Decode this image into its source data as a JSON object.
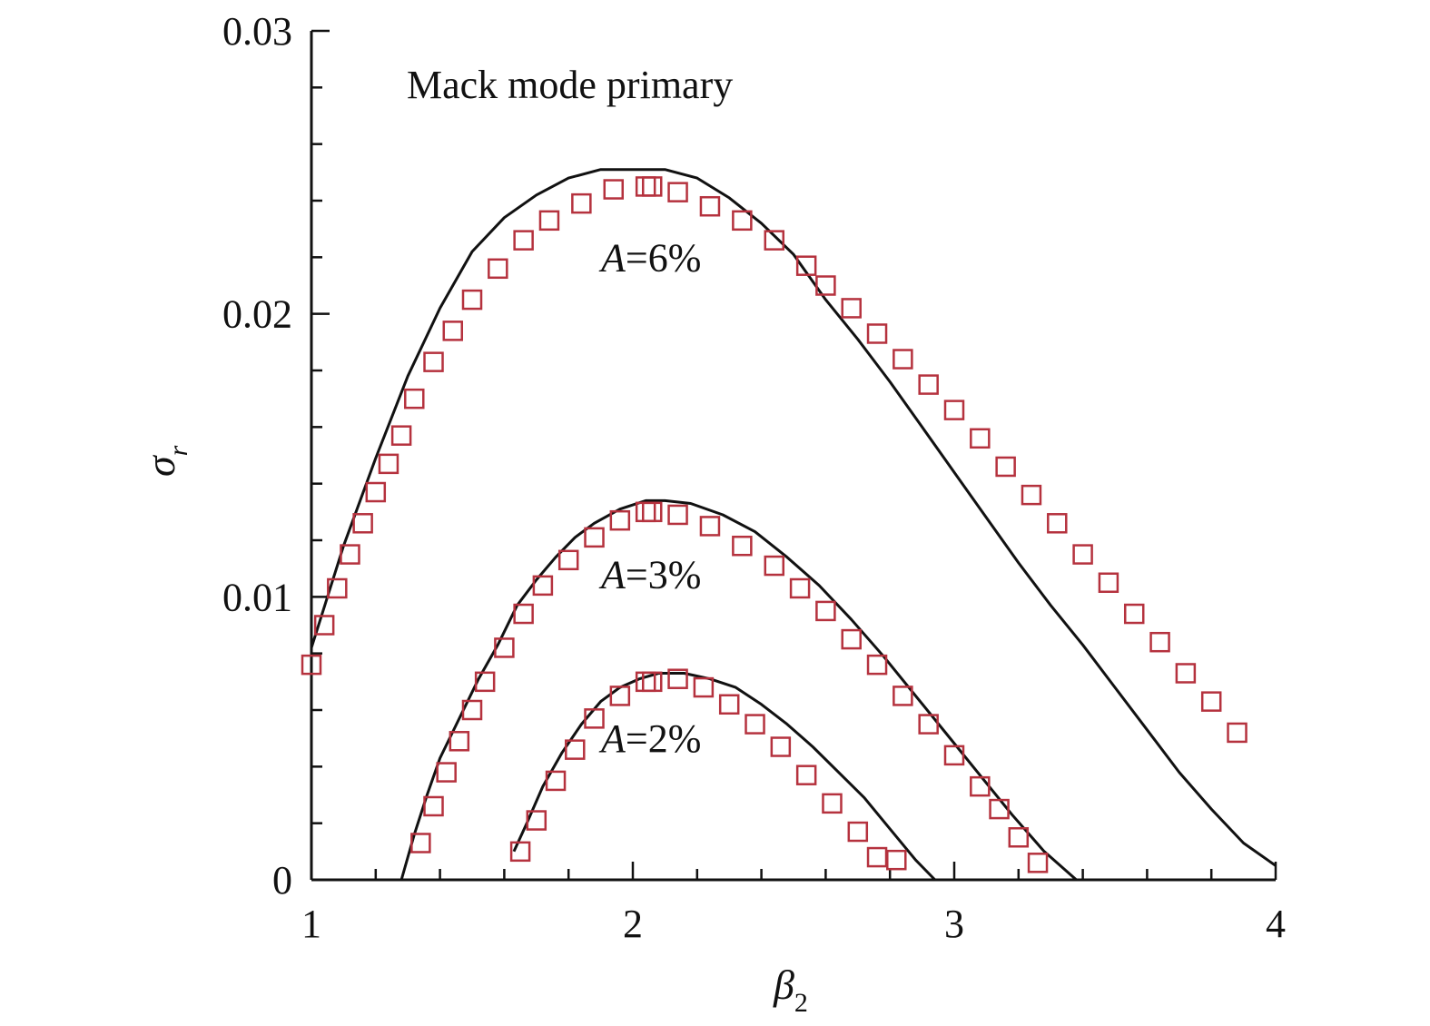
{
  "chart_data": {
    "type": "line",
    "title": "",
    "annotation": "Mack mode primary",
    "xlabel": "β",
    "xlabel_sub": "2",
    "ylabel": "σ",
    "ylabel_sub": "r",
    "xlim": [
      1,
      4
    ],
    "ylim": [
      0,
      0.03
    ],
    "x_ticks": [
      "1",
      "2",
      "3",
      "4"
    ],
    "y_ticks": [
      "0",
      "0.01",
      "0.02",
      "0.03"
    ],
    "grid": false,
    "marker_color": "#b5323e",
    "line_color": "#111111",
    "series": [
      {
        "label": "A=6%",
        "label_pos": [
          2.2,
          0.022
        ],
        "line": [
          [
            1.0,
            0.0082
          ],
          [
            1.1,
            0.0118
          ],
          [
            1.2,
            0.0149
          ],
          [
            1.3,
            0.0178
          ],
          [
            1.4,
            0.0202
          ],
          [
            1.5,
            0.0222
          ],
          [
            1.6,
            0.0234
          ],
          [
            1.7,
            0.0242
          ],
          [
            1.8,
            0.0248
          ],
          [
            1.9,
            0.0251
          ],
          [
            2.0,
            0.0251
          ],
          [
            2.1,
            0.0251
          ],
          [
            2.2,
            0.0248
          ],
          [
            2.3,
            0.0241
          ],
          [
            2.4,
            0.0232
          ],
          [
            2.5,
            0.0221
          ],
          [
            2.6,
            0.0205
          ],
          [
            2.7,
            0.0191
          ],
          [
            2.8,
            0.0176
          ],
          [
            2.9,
            0.016
          ],
          [
            3.0,
            0.0144
          ],
          [
            3.1,
            0.0128
          ],
          [
            3.2,
            0.0112
          ],
          [
            3.3,
            0.0097
          ],
          [
            3.4,
            0.0083
          ],
          [
            3.5,
            0.0068
          ],
          [
            3.6,
            0.0053
          ],
          [
            3.7,
            0.0038
          ],
          [
            3.8,
            0.0025
          ],
          [
            3.9,
            0.0013
          ],
          [
            4.0,
            0.0005
          ]
        ],
        "markers": [
          [
            1.0,
            0.0076
          ],
          [
            1.04,
            0.009
          ],
          [
            1.08,
            0.0103
          ],
          [
            1.12,
            0.0115
          ],
          [
            1.16,
            0.0126
          ],
          [
            1.2,
            0.0137
          ],
          [
            1.24,
            0.0147
          ],
          [
            1.28,
            0.0157
          ],
          [
            1.32,
            0.017
          ],
          [
            1.38,
            0.0183
          ],
          [
            1.44,
            0.0194
          ],
          [
            1.5,
            0.0205
          ],
          [
            1.58,
            0.0216
          ],
          [
            1.66,
            0.0226
          ],
          [
            1.74,
            0.0233
          ],
          [
            1.84,
            0.0239
          ],
          [
            1.94,
            0.0244
          ],
          [
            2.04,
            0.0245
          ],
          [
            2.06,
            0.0245
          ],
          [
            2.14,
            0.0243
          ],
          [
            2.24,
            0.0238
          ],
          [
            2.34,
            0.0233
          ],
          [
            2.44,
            0.0226
          ],
          [
            2.54,
            0.0217
          ],
          [
            2.6,
            0.021
          ],
          [
            2.68,
            0.0202
          ],
          [
            2.76,
            0.0193
          ],
          [
            2.84,
            0.0184
          ],
          [
            2.92,
            0.0175
          ],
          [
            3.0,
            0.0166
          ],
          [
            3.08,
            0.0156
          ],
          [
            3.16,
            0.0146
          ],
          [
            3.24,
            0.0136
          ],
          [
            3.32,
            0.0126
          ],
          [
            3.4,
            0.0115
          ],
          [
            3.48,
            0.0105
          ],
          [
            3.56,
            0.0094
          ],
          [
            3.64,
            0.0084
          ],
          [
            3.72,
            0.0073
          ],
          [
            3.8,
            0.0063
          ],
          [
            3.88,
            0.0052
          ]
        ]
      },
      {
        "label": "A=3%",
        "label_pos": [
          2.2,
          0.0108
        ],
        "line": [
          [
            1.28,
            0.0
          ],
          [
            1.32,
            0.0016
          ],
          [
            1.36,
            0.003
          ],
          [
            1.4,
            0.0043
          ],
          [
            1.46,
            0.0057
          ],
          [
            1.52,
            0.0071
          ],
          [
            1.58,
            0.0083
          ],
          [
            1.64,
            0.0097
          ],
          [
            1.7,
            0.0106
          ],
          [
            1.76,
            0.0114
          ],
          [
            1.82,
            0.0121
          ],
          [
            1.88,
            0.0126
          ],
          [
            1.96,
            0.0131
          ],
          [
            2.04,
            0.0134
          ],
          [
            2.1,
            0.0134
          ],
          [
            2.18,
            0.0133
          ],
          [
            2.28,
            0.0129
          ],
          [
            2.38,
            0.0123
          ],
          [
            2.48,
            0.0114
          ],
          [
            2.58,
            0.0104
          ],
          [
            2.68,
            0.0092
          ],
          [
            2.78,
            0.0079
          ],
          [
            2.88,
            0.0065
          ],
          [
            2.98,
            0.0051
          ],
          [
            3.08,
            0.0037
          ],
          [
            3.18,
            0.0023
          ],
          [
            3.28,
            0.001
          ],
          [
            3.38,
            0.0
          ]
        ],
        "markers": [
          [
            1.34,
            0.0013
          ],
          [
            1.38,
            0.0026
          ],
          [
            1.42,
            0.0038
          ],
          [
            1.46,
            0.0049
          ],
          [
            1.5,
            0.006
          ],
          [
            1.54,
            0.007
          ],
          [
            1.6,
            0.0082
          ],
          [
            1.66,
            0.0094
          ],
          [
            1.72,
            0.0104
          ],
          [
            1.8,
            0.0113
          ],
          [
            1.88,
            0.0121
          ],
          [
            1.96,
            0.0127
          ],
          [
            2.04,
            0.013
          ],
          [
            2.06,
            0.013
          ],
          [
            2.14,
            0.0129
          ],
          [
            2.24,
            0.0125
          ],
          [
            2.34,
            0.0118
          ],
          [
            2.44,
            0.0111
          ],
          [
            2.52,
            0.0103
          ],
          [
            2.6,
            0.0095
          ],
          [
            2.68,
            0.0085
          ],
          [
            2.76,
            0.0076
          ],
          [
            2.84,
            0.0065
          ],
          [
            2.92,
            0.0055
          ],
          [
            3.0,
            0.0044
          ],
          [
            3.08,
            0.0033
          ],
          [
            3.14,
            0.0025
          ],
          [
            3.2,
            0.0015
          ],
          [
            3.26,
            0.0006
          ]
        ]
      },
      {
        "label": "A=2%",
        "label_pos": [
          2.2,
          0.005
        ],
        "line": [
          [
            1.63,
            0.001
          ],
          [
            1.67,
            0.002
          ],
          [
            1.72,
            0.0033
          ],
          [
            1.78,
            0.0045
          ],
          [
            1.84,
            0.0055
          ],
          [
            1.9,
            0.0063
          ],
          [
            1.96,
            0.0068
          ],
          [
            2.02,
            0.0071
          ],
          [
            2.08,
            0.0073
          ],
          [
            2.16,
            0.0073
          ],
          [
            2.24,
            0.0071
          ],
          [
            2.32,
            0.0068
          ],
          [
            2.4,
            0.0062
          ],
          [
            2.48,
            0.0055
          ],
          [
            2.56,
            0.0047
          ],
          [
            2.64,
            0.0038
          ],
          [
            2.72,
            0.0029
          ],
          [
            2.8,
            0.0018
          ],
          [
            2.88,
            0.0007
          ],
          [
            2.94,
            0.0
          ]
        ],
        "markers": [
          [
            1.65,
            0.001
          ],
          [
            1.7,
            0.0021
          ],
          [
            1.76,
            0.0035
          ],
          [
            1.82,
            0.0046
          ],
          [
            1.88,
            0.0057
          ],
          [
            1.96,
            0.0065
          ],
          [
            2.04,
            0.007
          ],
          [
            2.06,
            0.007
          ],
          [
            2.14,
            0.0071
          ],
          [
            2.22,
            0.0068
          ],
          [
            2.3,
            0.0062
          ],
          [
            2.38,
            0.0055
          ],
          [
            2.46,
            0.0047
          ],
          [
            2.54,
            0.0037
          ],
          [
            2.62,
            0.0027
          ],
          [
            2.7,
            0.0017
          ],
          [
            2.76,
            0.0008
          ],
          [
            2.82,
            0.0007
          ]
        ]
      }
    ]
  }
}
